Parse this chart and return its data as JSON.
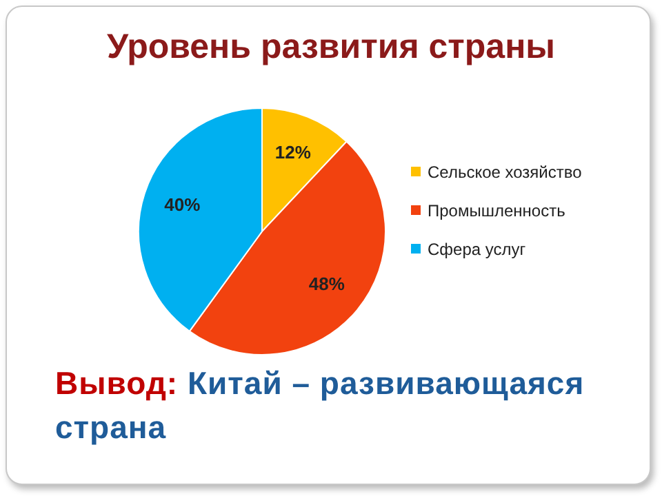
{
  "chart_data": {
    "type": "pie",
    "title": "Уровень развития страны",
    "categories": [
      "Сельское хозяйство",
      "Промышленность",
      "Сфера услуг"
    ],
    "values": [
      12,
      48,
      40
    ],
    "colors": [
      "#ffc000",
      "#f2420f",
      "#00b0f0"
    ],
    "value_labels": [
      "12%",
      "48%",
      "40%"
    ],
    "legend": "right",
    "annotations": [
      "Вывод:",
      "Китай – развивающаяся страна"
    ]
  }
}
